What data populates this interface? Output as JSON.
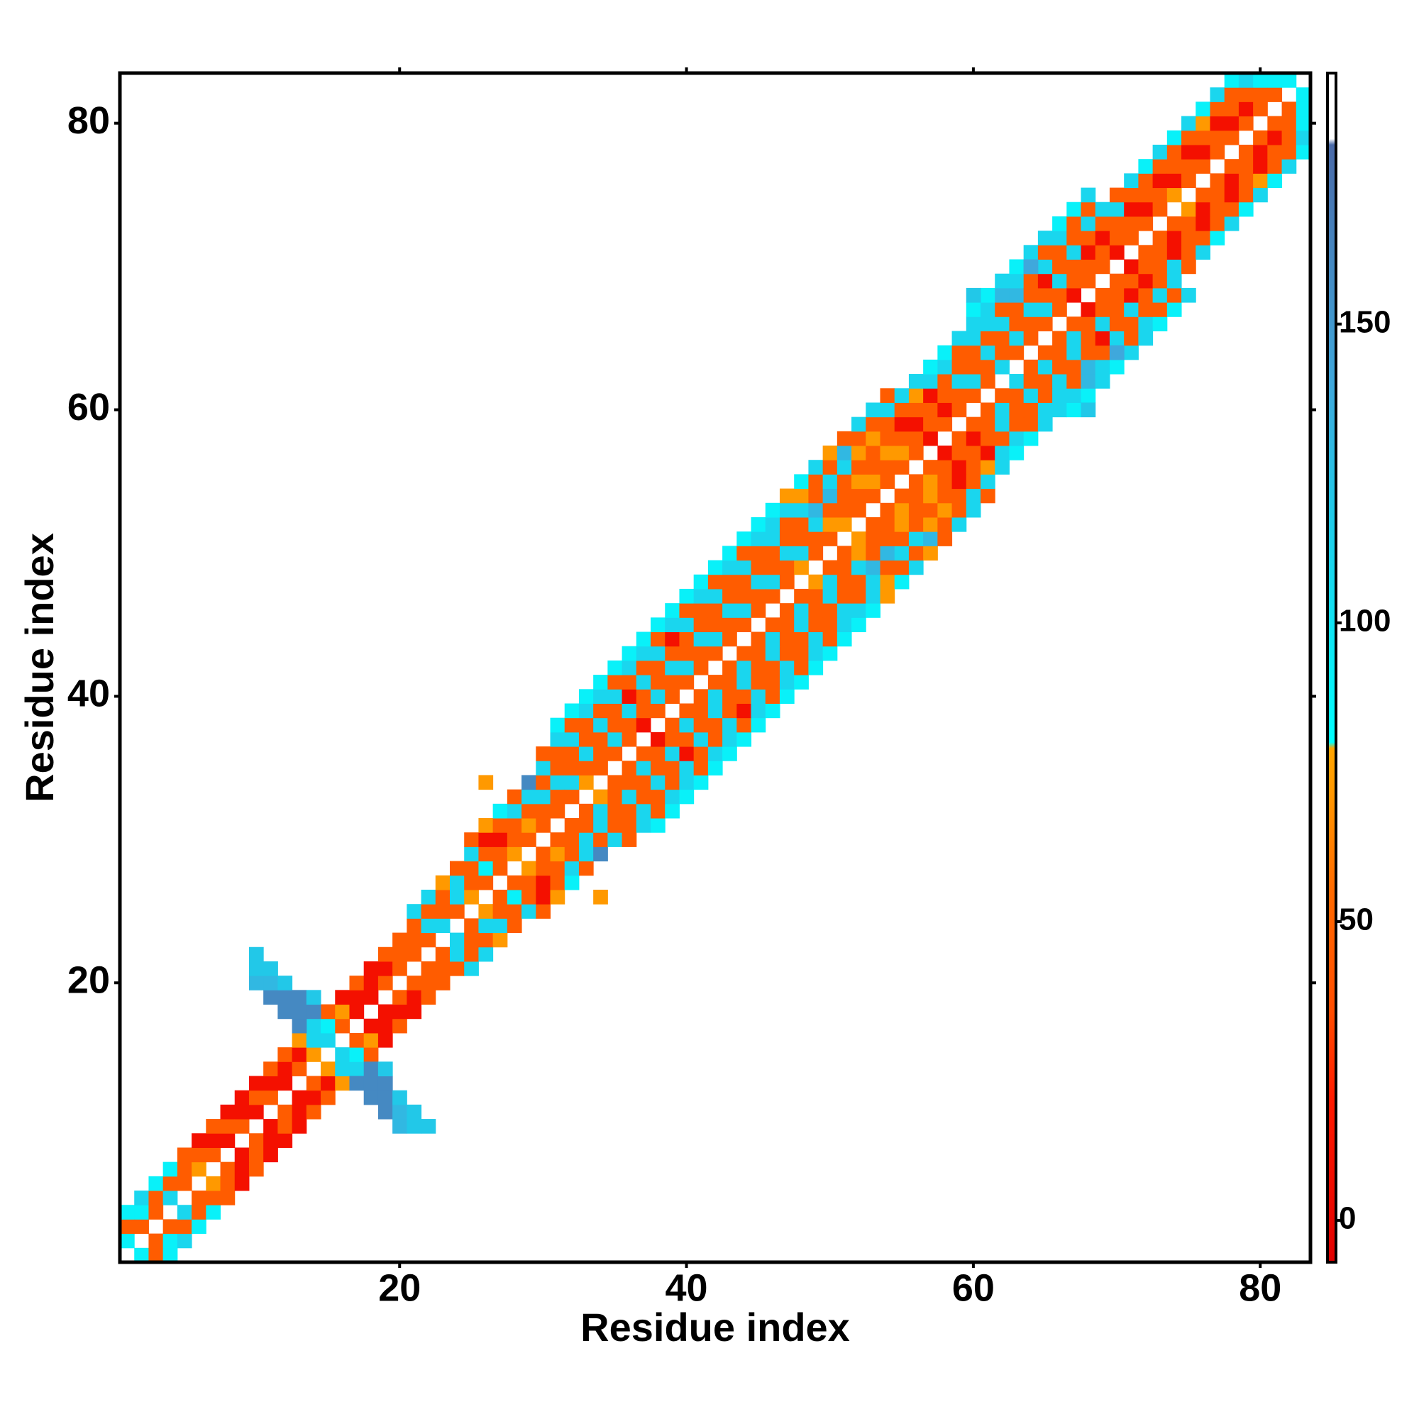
{
  "chart_data": {
    "type": "heatmap",
    "xlabel": "Residue index",
    "ylabel": "Residue index",
    "xlim": [
      0.5,
      83.5
    ],
    "ylim": [
      0.5,
      83.5
    ],
    "xticks": [
      20,
      40,
      60,
      80
    ],
    "yticks": [
      20,
      40,
      60,
      80
    ],
    "symmetric": true,
    "rows": [
      {
        "x": 1,
        "y0": 2,
        "values": [
          90,
          45,
          90
        ]
      },
      {
        "x": 2,
        "y0": 3,
        "values": [
          45,
          90,
          110
        ]
      },
      {
        "x": 3,
        "y0": 4,
        "values": [
          45,
          45,
          90
        ]
      },
      {
        "x": 4,
        "y0": 5,
        "values": [
          110,
          45,
          90
        ]
      },
      {
        "x": 5,
        "y0": 6,
        "values": [
          45,
          45,
          45
        ]
      },
      {
        "x": 6,
        "y0": 7,
        "values": [
          72,
          45,
          10
        ]
      },
      {
        "x": 7,
        "y0": 8,
        "values": [
          45,
          10,
          45
        ]
      },
      {
        "x": 8,
        "y0": 9,
        "values": [
          10,
          45,
          10
        ]
      },
      {
        "x": 9,
        "y0": 10,
        "values": [
          45,
          10,
          10
        ]
      },
      {
        "x": 10,
        "y0": 11,
        "values": [
          10,
          45,
          10
        ]
      },
      {
        "x": 11,
        "y0": 12,
        "values": [
          45,
          10,
          45
        ]
      },
      {
        "x": 12,
        "y0": 13,
        "values": [
          10,
          10,
          45
        ]
      },
      {
        "x": 13,
        "y0": 14,
        "values": [
          45,
          10,
          72
        ]
      },
      {
        "x": 14,
        "y0": 15,
        "values": [
          72,
          110,
          110
        ]
      },
      {
        "x": 15,
        "y0": 16,
        "values": [
          110,
          90,
          45
        ]
      },
      {
        "x": 16,
        "y0": 17,
        "values": [
          45,
          72,
          10
        ]
      },
      {
        "x": 17,
        "y0": 18,
        "values": [
          10,
          10,
          45
        ]
      },
      {
        "x": 18,
        "y0": 19,
        "values": [
          10,
          10,
          10
        ]
      },
      {
        "x": 19,
        "y0": 20,
        "values": [
          45,
          10,
          45
        ]
      },
      {
        "x": 20,
        "y0": 21,
        "values": [
          45,
          45,
          45
        ]
      },
      {
        "x": 21,
        "y0": 22,
        "values": [
          45,
          45,
          45,
          110
        ]
      },
      {
        "x": 22,
        "y0": 23,
        "values": [
          45,
          110,
          45,
          110
        ]
      },
      {
        "x": 23,
        "y0": 24,
        "values": [
          110,
          45,
          45,
          72
        ]
      },
      {
        "x": 24,
        "y0": 25,
        "values": [
          45,
          110,
          110,
          45
        ]
      },
      {
        "x": 25,
        "y0": 26,
        "values": [
          72,
          45,
          45,
          110,
          45
        ]
      },
      {
        "x": 26,
        "y0": 27,
        "values": [
          45,
          90,
          45,
          10,
          72
        ]
      },
      {
        "x": 27,
        "y0": 28,
        "values": [
          45,
          45,
          10,
          45,
          90
        ]
      },
      {
        "x": 28,
        "y0": 29,
        "values": [
          72,
          45,
          45,
          110,
          45
        ]
      },
      {
        "x": 29,
        "y0": 30,
        "values": [
          45,
          72,
          45,
          110,
          160
        ]
      },
      {
        "x": 30,
        "y0": 31,
        "values": [
          45,
          45,
          110,
          45,
          110,
          45
        ]
      },
      {
        "x": 31,
        "y0": 32,
        "values": [
          45,
          45,
          110,
          45,
          45,
          110,
          90
        ]
      },
      {
        "x": 32,
        "y0": 33,
        "values": [
          45,
          110,
          45,
          45,
          110,
          45,
          90
        ]
      },
      {
        "x": 33,
        "y0": 34,
        "values": [
          72,
          45,
          110,
          45,
          45,
          110,
          90
        ]
      },
      {
        "x": 34,
        "y0": 35,
        "values": [
          45,
          45,
          45,
          110,
          45,
          110,
          90
        ]
      },
      {
        "x": 35,
        "y0": 36,
        "values": [
          45,
          110,
          45,
          45,
          110,
          45,
          90
        ]
      },
      {
        "x": 36,
        "y0": 37,
        "values": [
          45,
          45,
          110,
          10,
          45,
          110,
          90
        ]
      },
      {
        "x": 37,
        "y0": 38,
        "values": [
          10,
          45,
          45,
          110,
          45,
          110,
          90
        ]
      },
      {
        "x": 38,
        "y0": 39,
        "values": [
          45,
          110,
          45,
          45,
          110,
          45,
          90
        ]
      },
      {
        "x": 39,
        "y0": 40,
        "values": [
          45,
          45,
          110,
          45,
          10,
          110,
          90
        ]
      },
      {
        "x": 40,
        "y0": 41,
        "values": [
          45,
          110,
          45,
          45,
          110,
          45,
          90
        ]
      },
      {
        "x": 41,
        "y0": 42,
        "values": [
          45,
          45,
          110,
          45,
          45,
          110,
          90
        ]
      },
      {
        "x": 42,
        "y0": 43,
        "values": [
          45,
          110,
          45,
          45,
          110,
          45,
          90
        ]
      },
      {
        "x": 43,
        "y0": 44,
        "values": [
          45,
          45,
          110,
          45,
          45,
          110,
          90
        ]
      },
      {
        "x": 44,
        "y0": 45,
        "values": [
          45,
          110,
          45,
          45,
          110,
          45,
          90
        ]
      },
      {
        "x": 45,
        "y0": 46,
        "values": [
          45,
          45,
          110,
          45,
          45,
          110,
          90
        ]
      },
      {
        "x": 46,
        "y0": 47,
        "values": [
          45,
          110,
          45,
          45,
          110,
          110,
          90
        ]
      },
      {
        "x": 47,
        "y0": 48,
        "values": [
          45,
          45,
          110,
          45,
          45,
          110,
          72
        ]
      },
      {
        "x": 48,
        "y0": 49,
        "values": [
          72,
          110,
          45,
          45,
          110,
          72,
          90
        ]
      },
      {
        "x": 49,
        "y0": 50,
        "values": [
          45,
          45,
          110,
          130,
          45,
          45,
          110
        ]
      },
      {
        "x": 50,
        "y0": 51,
        "values": [
          45,
          72,
          45,
          130,
          110,
          45,
          72
        ]
      },
      {
        "x": 51,
        "y0": 52,
        "values": [
          72,
          45,
          45,
          45,
          110,
          130,
          45
        ]
      },
      {
        "x": 52,
        "y0": 53,
        "values": [
          45,
          45,
          72,
          45,
          72,
          45,
          110
        ]
      },
      {
        "x": 53,
        "y0": 54,
        "values": [
          45,
          72,
          45,
          45,
          72,
          45,
          110
        ]
      },
      {
        "x": 54,
        "y0": 55,
        "values": [
          45,
          45,
          72,
          45,
          45,
          110,
          45
        ]
      },
      {
        "x": 55,
        "y0": 56,
        "values": [
          45,
          72,
          45,
          10,
          45,
          110
        ]
      },
      {
        "x": 56,
        "y0": 57,
        "values": [
          45,
          45,
          10,
          45,
          72,
          110
        ]
      },
      {
        "x": 57,
        "y0": 58,
        "values": [
          10,
          45,
          45,
          10,
          110,
          90
        ]
      },
      {
        "x": 58,
        "y0": 59,
        "values": [
          45,
          10,
          45,
          45,
          110,
          90
        ]
      },
      {
        "x": 59,
        "y0": 60,
        "values": [
          45,
          45,
          110,
          45,
          45,
          110
        ]
      },
      {
        "x": 60,
        "y0": 61,
        "values": [
          45,
          110,
          45,
          45,
          110,
          110,
          90
        ]
      },
      {
        "x": 61,
        "y0": 62,
        "values": [
          45,
          45,
          110,
          45,
          110,
          110,
          90
        ]
      },
      {
        "x": 62,
        "y0": 63,
        "values": [
          110,
          45,
          45,
          110,
          45,
          130,
          110
        ]
      },
      {
        "x": 63,
        "y0": 64,
        "values": [
          45,
          110,
          45,
          45,
          130,
          110,
          90
        ]
      },
      {
        "x": 64,
        "y0": 65,
        "values": [
          45,
          45,
          110,
          45,
          45,
          130,
          110
        ]
      },
      {
        "x": 65,
        "y0": 66,
        "values": [
          45,
          110,
          45,
          10,
          110,
          45,
          110
        ]
      },
      {
        "x": 66,
        "y0": 67,
        "values": [
          45,
          45,
          110,
          45,
          45,
          110,
          90
        ]
      },
      {
        "x": 67,
        "y0": 68,
        "values": [
          10,
          45,
          45,
          110,
          45,
          45,
          90
        ]
      },
      {
        "x": 68,
        "y0": 69,
        "values": [
          45,
          45,
          10,
          45,
          110,
          45,
          110
        ]
      },
      {
        "x": 69,
        "y0": 70,
        "values": [
          45,
          45,
          10,
          45,
          110
        ]
      },
      {
        "x": 70,
        "y0": 71,
        "values": [
          10,
          45,
          45,
          110,
          45
        ]
      },
      {
        "x": 71,
        "y0": 72,
        "values": [
          45,
          45,
          10,
          45,
          110
        ]
      },
      {
        "x": 72,
        "y0": 73,
        "values": [
          45,
          10,
          45,
          45,
          90
        ]
      },
      {
        "x": 73,
        "y0": 74,
        "values": [
          45,
          45,
          10,
          45,
          110
        ]
      },
      {
        "x": 74,
        "y0": 75,
        "values": [
          72,
          10,
          45,
          45,
          90
        ]
      },
      {
        "x": 75,
        "y0": 76,
        "values": [
          45,
          45,
          10,
          45,
          110
        ]
      },
      {
        "x": 76,
        "y0": 77,
        "values": [
          45,
          10,
          45,
          72,
          90
        ]
      },
      {
        "x": 77,
        "y0": 78,
        "values": [
          45,
          45,
          10,
          45,
          110
        ]
      },
      {
        "x": 78,
        "y0": 79,
        "values": [
          45,
          10,
          45,
          45,
          90
        ]
      },
      {
        "x": 79,
        "y0": 80,
        "values": [
          45,
          10,
          45,
          110
        ]
      },
      {
        "x": 80,
        "y0": 81,
        "values": [
          45,
          45,
          90
        ]
      },
      {
        "x": 81,
        "y0": 82,
        "values": [
          45,
          90
        ]
      },
      {
        "x": 82,
        "y0": 83,
        "values": [
          90
        ]
      },
      {
        "x": 10,
        "y0": 20,
        "values": [
          130,
          120,
          120
        ]
      },
      {
        "x": 11,
        "y0": 19,
        "values": [
          160,
          130,
          120
        ]
      },
      {
        "x": 12,
        "y0": 18,
        "values": [
          160,
          160,
          120
        ]
      },
      {
        "x": 13,
        "y0": 17,
        "values": [
          160,
          160,
          160
        ]
      },
      {
        "x": 14,
        "y0": 18,
        "values": [
          160,
          120
        ]
      },
      {
        "x": 26,
        "y0": 34,
        "values": [
          72
        ]
      },
      {
        "x": 60,
        "y0": 68,
        "values": [
          120
        ]
      },
      {
        "x": 64,
        "y0": 70,
        "values": [
          140
        ]
      }
    ],
    "colorbar": {
      "lim": [
        -7,
        192
      ],
      "ticks": [
        0,
        50,
        100,
        150
      ],
      "colormap": [
        [
          -7,
          "#e00000"
        ],
        [
          20,
          "#ff1a00"
        ],
        [
          35,
          "#ff4d00"
        ],
        [
          55,
          "#ff6a00"
        ],
        [
          72,
          "#ff9900"
        ],
        [
          79,
          "#ffa500"
        ],
        [
          80,
          "#00ffff"
        ],
        [
          120,
          "#22c8e8"
        ],
        [
          140,
          "#3fa8dc"
        ],
        [
          180,
          "#4a6aa8"
        ],
        [
          181,
          "#ffffff"
        ],
        [
          192,
          "#ffffff"
        ]
      ]
    }
  }
}
